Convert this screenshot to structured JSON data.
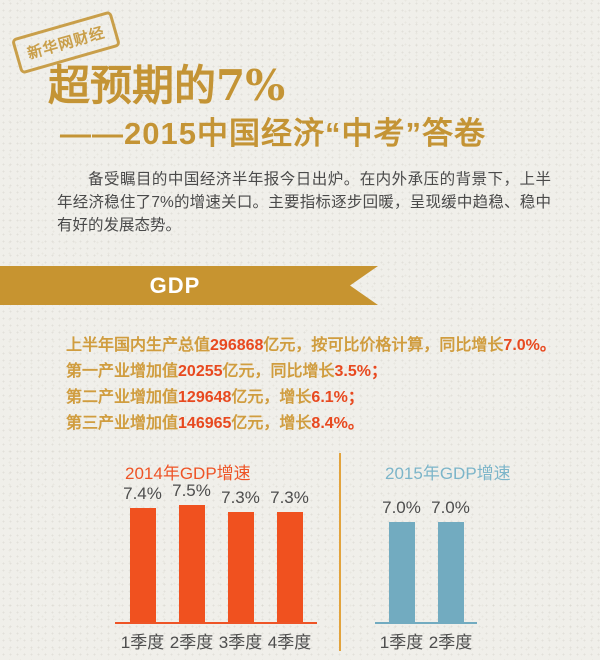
{
  "theme": {
    "background": "#f0efea",
    "gold": "#c49435",
    "banner_gold": "#c79430",
    "text_dark": "#4a4a4a",
    "stat_gold": "#d09d3f",
    "stat_red": "#e8491f",
    "label_gray": "#4d4d4d",
    "divider": "#e2a33d"
  },
  "badge": {
    "label": "新华网财经"
  },
  "header": {
    "title": "超预期的7%",
    "subtitle": "——2015中国经济“中考”答卷",
    "intro": "备受瞩目的中国经济半年报今日出炉。在内外承压的背景下，上半年经济稳住了7%的增速关口。主要指标逐步回暖，呈现缓中趋稳、稳中有好的发展态势。"
  },
  "section": {
    "label": "GDP"
  },
  "stats": {
    "lines": [
      {
        "segments": [
          {
            "text": "上半年国内生产总值",
            "color": "gold"
          },
          {
            "text": "296868",
            "color": "red"
          },
          {
            "text": "亿元，按可比价格计算，同比增长",
            "color": "gold"
          },
          {
            "text": "7.0%。",
            "color": "red"
          }
        ]
      },
      {
        "segments": [
          {
            "text": "第一产业增加值",
            "color": "gold"
          },
          {
            "text": "20255",
            "color": "red"
          },
          {
            "text": "亿元，同比增长",
            "color": "gold"
          },
          {
            "text": "3.5%；",
            "color": "red"
          }
        ]
      },
      {
        "segments": [
          {
            "text": "第二产业增加值",
            "color": "gold"
          },
          {
            "text": "129648",
            "color": "red"
          },
          {
            "text": "亿元，增长",
            "color": "gold"
          },
          {
            "text": "6.1%；",
            "color": "red"
          }
        ]
      },
      {
        "segments": [
          {
            "text": "第三产业增加值",
            "color": "gold"
          },
          {
            "text": "146965",
            "color": "red"
          },
          {
            "text": "亿元，增长",
            "color": "gold"
          },
          {
            "text": "8.4%。",
            "color": "red"
          }
        ]
      }
    ]
  },
  "chart_data": [
    {
      "type": "bar",
      "title": "2014年GDP增速",
      "categories": [
        "1季度",
        "2季度",
        "3季度",
        "4季度"
      ],
      "values": [
        7.4,
        7.5,
        7.3,
        7.3
      ],
      "value_labels": [
        "7.4%",
        "7.5%",
        "7.3%",
        "7.3%"
      ],
      "unit": "%",
      "bar_color": "#f0511f",
      "title_color": "#ee5426",
      "axis_color": "#ee5426",
      "ylim": [
        4.0,
        7.5
      ],
      "grid": false,
      "legend": "none"
    },
    {
      "type": "bar",
      "title": "2015年GDP增速",
      "categories": [
        "1季度",
        "2季度"
      ],
      "values": [
        7.0,
        7.0
      ],
      "value_labels": [
        "7.0%",
        "7.0%"
      ],
      "unit": "%",
      "bar_color": "#72abc0",
      "title_color": "#7cb5c9",
      "axis_color": "#72abc0",
      "ylim": [
        4.0,
        7.5
      ],
      "grid": false,
      "legend": "none"
    }
  ]
}
